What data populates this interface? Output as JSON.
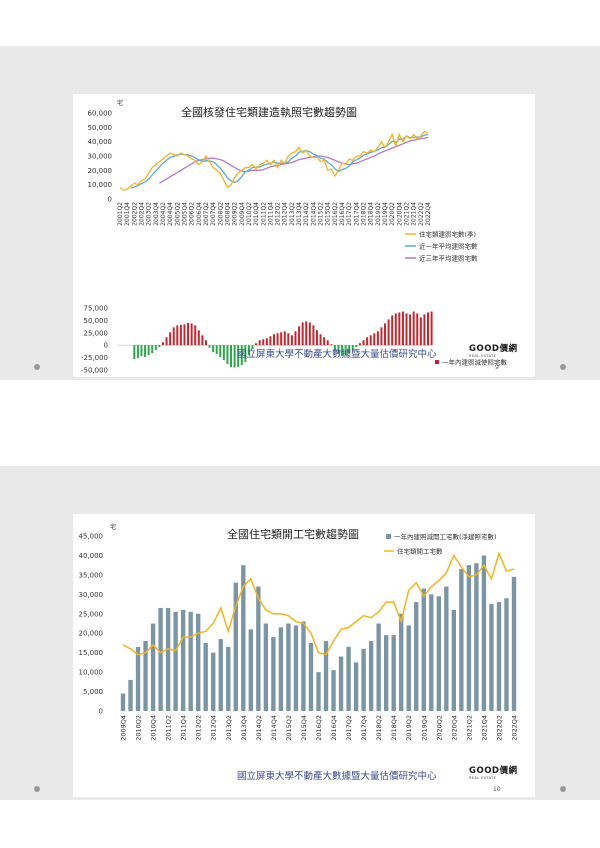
{
  "slides": [
    {
      "footer": "國立屏東大學不動產大數據暨大量估價研究中心",
      "logo": "GOOD價網",
      "logo_sub": "REAL ESTATE",
      "page_number": "9"
    },
    {
      "footer": "國立屏東大學不動產大數據暨大量估價研究中心",
      "logo": "GOOD價網",
      "logo_sub": "REAL ESTATE",
      "page_number": "10"
    }
  ],
  "chart_data": [
    {
      "type": "line",
      "title": "全國核發住宅類建造執照宅數趨勢圖",
      "unit_label": "宅",
      "x": [
        "2001Q2",
        "2001Q3",
        "2001Q4",
        "2002Q1",
        "2002Q2",
        "2002Q3",
        "2002Q4",
        "2003Q1",
        "2003Q2",
        "2003Q3",
        "2003Q4",
        "2004Q1",
        "2004Q2",
        "2004Q3",
        "2004Q4",
        "2005Q1",
        "2005Q2",
        "2005Q3",
        "2005Q4",
        "2006Q1",
        "2006Q2",
        "2006Q3",
        "2006Q4",
        "2007Q1",
        "2007Q2",
        "2007Q3",
        "2007Q4",
        "2008Q1",
        "2008Q2",
        "2008Q3",
        "2008Q4",
        "2009Q1",
        "2009Q2",
        "2009Q3",
        "2009Q4",
        "2010Q1",
        "2010Q2",
        "2010Q3",
        "2010Q4",
        "2011Q1",
        "2011Q2",
        "2011Q3",
        "2011Q4",
        "2012Q1",
        "2012Q2",
        "2012Q3",
        "2012Q4",
        "2013Q1",
        "2013Q2",
        "2013Q3",
        "2013Q4",
        "2014Q1",
        "2014Q2",
        "2014Q3",
        "2014Q4",
        "2015Q1",
        "2015Q2",
        "2015Q3",
        "2015Q4",
        "2016Q1",
        "2016Q2",
        "2016Q3",
        "2016Q4",
        "2017Q1",
        "2017Q2",
        "2017Q3",
        "2017Q4",
        "2018Q1",
        "2018Q2",
        "2018Q3",
        "2018Q4",
        "2019Q1",
        "2019Q2",
        "2019Q3",
        "2019Q4",
        "2020Q1",
        "2020Q2",
        "2020Q3",
        "2020Q4",
        "2021Q1",
        "2021Q2",
        "2021Q3",
        "2021Q4",
        "2022Q1",
        "2022Q2",
        "2022Q3",
        "2022Q4"
      ],
      "x_tick_labels": [
        "2001Q2",
        "2001Q4",
        "2002Q2",
        "2002Q4",
        "2003Q2",
        "2003Q4",
        "2004Q2",
        "2004Q4",
        "2005Q2",
        "2005Q4",
        "2006Q2",
        "2006Q4",
        "2007Q2",
        "2007Q4",
        "2008Q2",
        "2008Q4",
        "2009Q2",
        "2009Q4",
        "2010Q2",
        "2010Q4",
        "2011Q2",
        "2011Q4",
        "2012Q2",
        "2012Q4",
        "2013Q2",
        "2013Q4",
        "2014Q2",
        "2014Q4",
        "2015Q2",
        "2015Q4",
        "2016Q2",
        "2016Q4",
        "2017Q2",
        "2017Q4",
        "2018Q2",
        "2018Q4",
        "2019Q2",
        "2019Q4",
        "2020Q2",
        "2020Q4",
        "2021Q2",
        "2021Q4",
        "2022Q2",
        "2022Q4"
      ],
      "ylim": [
        0,
        60000
      ],
      "y_ticks": [
        "0",
        "10,000",
        "20,000",
        "30,000",
        "40,000",
        "50,000",
        "60,000"
      ],
      "series": [
        {
          "name": "住宅類建照宅數(季)",
          "color": "#f2b51e",
          "values": [
            8000,
            6000,
            7000,
            9000,
            11000,
            10000,
            13000,
            14000,
            18000,
            22000,
            24000,
            26000,
            28000,
            30000,
            32000,
            31000,
            30000,
            32000,
            31000,
            30000,
            28000,
            27000,
            24000,
            26000,
            30000,
            26000,
            22000,
            20000,
            18000,
            13000,
            8000,
            10000,
            15000,
            18000,
            20000,
            22000,
            22000,
            24000,
            21000,
            24000,
            25000,
            27000,
            24000,
            27000,
            22000,
            27000,
            25000,
            30000,
            32000,
            33000,
            36000,
            32000,
            34000,
            30000,
            29000,
            29000,
            26000,
            27000,
            20000,
            21000,
            16000,
            20000,
            25000,
            24000,
            28000,
            27000,
            30000,
            30000,
            33000,
            32000,
            34000,
            33000,
            36000,
            40000,
            36000,
            40000,
            45000,
            37000,
            45000,
            40000,
            44000,
            42000,
            45000,
            42000,
            44000,
            47000,
            46000
          ]
        },
        {
          "name": "近一年平均建照宅數",
          "color": "#5aaad8",
          "values": [
            null,
            null,
            null,
            7500,
            8250,
            9250,
            10750,
            12000,
            14000,
            16750,
            19500,
            22500,
            25000,
            27000,
            29000,
            29750,
            30750,
            31250,
            31000,
            30750,
            30000,
            28750,
            27250,
            26250,
            26750,
            26500,
            26000,
            24000,
            21500,
            18250,
            14750,
            12750,
            11500,
            12750,
            15750,
            18750,
            20250,
            22000,
            22250,
            22250,
            23500,
            24250,
            25000,
            25750,
            25000,
            25000,
            24750,
            26000,
            28500,
            30000,
            32750,
            33250,
            33750,
            33000,
            31250,
            30500,
            28500,
            27750,
            25500,
            24000,
            21000,
            19250,
            20500,
            21250,
            23000,
            26000,
            27250,
            28750,
            30500,
            31500,
            32500,
            33250,
            34250,
            35750,
            36250,
            38000,
            40250,
            39500,
            41750,
            41750,
            44000,
            42750,
            43000,
            43250,
            43250,
            44500,
            45000
          ]
        },
        {
          "name": "近三年平均建照宅數",
          "color": "#b278c8",
          "values": [
            null,
            null,
            null,
            null,
            null,
            null,
            null,
            null,
            null,
            null,
            null,
            11000,
            12500,
            14000,
            15500,
            17000,
            18500,
            20000,
            21500,
            23000,
            24500,
            26000,
            27000,
            27500,
            28000,
            28500,
            28500,
            28000,
            27500,
            26500,
            25000,
            23500,
            22000,
            20500,
            19500,
            19000,
            19500,
            20000,
            20000,
            20000,
            20500,
            21500,
            22500,
            23000,
            23500,
            24000,
            24500,
            25000,
            25500,
            26500,
            27500,
            28000,
            28500,
            29000,
            29500,
            30000,
            30000,
            29500,
            29000,
            28000,
            27000,
            26000,
            25000,
            24500,
            24000,
            24500,
            25000,
            26000,
            27000,
            28000,
            29000,
            30000,
            31500,
            32500,
            33500,
            34500,
            35500,
            36500,
            37500,
            38500,
            39500,
            40500,
            41000,
            41500,
            42000,
            42500,
            43000
          ]
        }
      ],
      "legend_placement": "right",
      "bar_panel": {
        "name": "一年內建照減使照宅數",
        "ylim": [
          -50000,
          75000
        ],
        "y_ticks": [
          "75,000",
          "50,000",
          "25,000",
          "0",
          "-25,000",
          "-50,000"
        ],
        "positive_color": "#c8232b",
        "negative_color": "#2aa84a",
        "values": [
          null,
          null,
          null,
          null,
          -28000,
          -26000,
          -22000,
          -24000,
          -20000,
          -16000,
          -10000,
          -4000,
          6000,
          16000,
          26000,
          36000,
          40000,
          41000,
          42000,
          45000,
          44000,
          40000,
          30000,
          20000,
          10000,
          -5000,
          -14000,
          -18000,
          -24000,
          -30000,
          -38000,
          -44000,
          -45000,
          -44000,
          -40000,
          -34000,
          -20000,
          -8000,
          4000,
          10000,
          12000,
          14000,
          18000,
          22000,
          24000,
          26000,
          28000,
          24000,
          20000,
          28000,
          38000,
          46000,
          48000,
          46000,
          40000,
          30000,
          22000,
          16000,
          10000,
          2000,
          -10000,
          -18000,
          -22000,
          -20000,
          -16000,
          -10000,
          -4000,
          4000,
          10000,
          16000,
          20000,
          24000,
          28000,
          36000,
          44000,
          52000,
          60000,
          64000,
          66000,
          68000,
          64000,
          62000,
          68000,
          64000,
          56000,
          62000,
          66000,
          68000
        ]
      }
    },
    {
      "type": "bar",
      "title": "全國住宅類開工宅數趨勢圖",
      "unit_label": "宅",
      "x": [
        "2009Q4",
        "2010Q1",
        "2010Q2",
        "2010Q3",
        "2010Q4",
        "2011Q1",
        "2011Q2",
        "2011Q3",
        "2011Q4",
        "2012Q1",
        "2012Q2",
        "2012Q3",
        "2012Q4",
        "2013Q1",
        "2013Q2",
        "2013Q3",
        "2013Q4",
        "2014Q1",
        "2014Q2",
        "2014Q3",
        "2014Q4",
        "2015Q1",
        "2015Q2",
        "2015Q3",
        "2015Q4",
        "2016Q1",
        "2016Q2",
        "2016Q3",
        "2016Q4",
        "2017Q1",
        "2017Q2",
        "2017Q3",
        "2017Q4",
        "2018Q1",
        "2018Q2",
        "2018Q3",
        "2018Q4",
        "2019Q1",
        "2019Q2",
        "2019Q3",
        "2019Q4",
        "2020Q1",
        "2020Q2",
        "2020Q3",
        "2020Q4",
        "2021Q1",
        "2021Q2",
        "2021Q3",
        "2021Q4",
        "2022Q1",
        "2022Q2",
        "2022Q3",
        "2022Q4"
      ],
      "x_tick_labels": [
        "2009Q4",
        "2010Q2",
        "2010Q4",
        "2011Q2",
        "2011Q4",
        "2012Q2",
        "2012Q4",
        "2013Q2",
        "2013Q4",
        "2014Q2",
        "2014Q4",
        "2015Q2",
        "2015Q4",
        "2016Q2",
        "2016Q4",
        "2017Q2",
        "2017Q4",
        "2018Q2",
        "2018Q4",
        "2019Q2",
        "2019Q4",
        "2020Q2",
        "2020Q4",
        "2021Q2",
        "2021Q4",
        "2022Q2",
        "2022Q4"
      ],
      "ylim": [
        0,
        45000
      ],
      "y_ticks": [
        "0",
        "5,000",
        "10,000",
        "15,000",
        "20,000",
        "25,000",
        "30,000",
        "35,000",
        "40,000",
        "45,000"
      ],
      "legend_placement": "top-right",
      "series": [
        {
          "name": "一年內建照減開工宅數(淨建照宅數)",
          "type": "bar",
          "color": "#7b95a4",
          "values": [
            4500,
            8000,
            16500,
            18000,
            22500,
            26500,
            26500,
            25500,
            26000,
            25500,
            25000,
            17500,
            15000,
            18500,
            16500,
            33000,
            37500,
            21000,
            32000,
            22500,
            19000,
            21500,
            22500,
            22000,
            23000,
            17500,
            10000,
            18000,
            10500,
            14000,
            16500,
            12500,
            16000,
            18000,
            22500,
            19500,
            19500,
            25000,
            22000,
            28000,
            31500,
            30000,
            29500,
            32000,
            26000,
            36500,
            37500,
            38000,
            40000,
            27500,
            28000,
            29000,
            34500
          ]
        },
        {
          "name": "住宅類開工宅數",
          "type": "line",
          "color": "#f2b51e",
          "values": [
            17000,
            16000,
            14500,
            15000,
            17000,
            15000,
            16000,
            15500,
            19000,
            19000,
            20000,
            20500,
            22500,
            26500,
            20500,
            27000,
            32000,
            34000,
            29000,
            26000,
            25000,
            25000,
            24500,
            23000,
            22500,
            20000,
            15000,
            14500,
            18000,
            21000,
            21500,
            23000,
            24500,
            24000,
            25500,
            28000,
            28000,
            23000,
            31000,
            33000,
            29500,
            32000,
            33500,
            35500,
            40000,
            37000,
            34500,
            35000,
            37500,
            34000,
            40500,
            36000,
            36500
          ]
        }
      ]
    }
  ]
}
